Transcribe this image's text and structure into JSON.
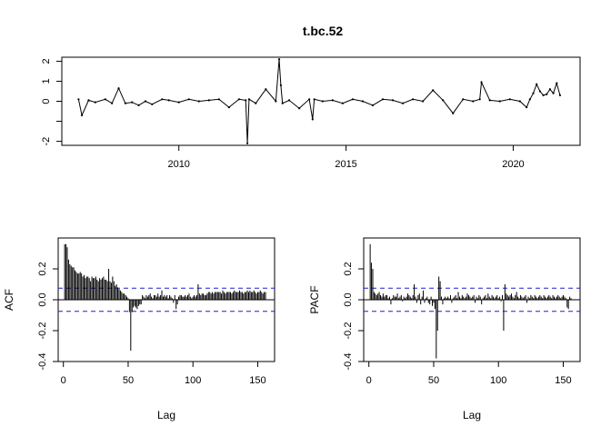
{
  "title": "t.bc.52",
  "chart_data": [
    {
      "type": "line",
      "name": "time-series",
      "xlabel": "",
      "ylabel": "",
      "xlim": [
        2006.5,
        2022.0
      ],
      "ylim": [
        -2.2,
        2.2
      ],
      "xticks": [
        2010,
        2015,
        2020
      ],
      "yticks": [
        -2,
        -1,
        0,
        1,
        2
      ],
      "ytick_labels": [
        "-2",
        "",
        "0",
        "1",
        "2"
      ],
      "x": [
        2007.0,
        2007.1,
        2007.3,
        2007.5,
        2007.8,
        2008.0,
        2008.2,
        2008.4,
        2008.6,
        2008.8,
        2009.0,
        2009.2,
        2009.5,
        2009.7,
        2010.0,
        2010.3,
        2010.6,
        2010.9,
        2011.2,
        2011.5,
        2011.8,
        2012.0,
        2012.05,
        2012.1,
        2012.3,
        2012.6,
        2012.9,
        2013.0,
        2013.05,
        2013.1,
        2013.3,
        2013.6,
        2013.9,
        2014.0,
        2014.05,
        2014.3,
        2014.6,
        2014.9,
        2015.2,
        2015.5,
        2015.8,
        2016.1,
        2016.4,
        2016.7,
        2017.0,
        2017.3,
        2017.6,
        2017.9,
        2018.2,
        2018.5,
        2018.8,
        2019.0,
        2019.05,
        2019.3,
        2019.6,
        2019.9,
        2020.2,
        2020.4,
        2020.5,
        2020.6,
        2020.7,
        2020.8,
        2020.9,
        2021.0,
        2021.1,
        2021.2,
        2021.3,
        2021.4
      ],
      "y": [
        0.1,
        -0.7,
        0.05,
        -0.05,
        0.1,
        -0.1,
        0.65,
        -0.1,
        -0.05,
        -0.2,
        0.0,
        -0.15,
        0.1,
        0.05,
        -0.05,
        0.1,
        0.0,
        0.05,
        0.1,
        -0.3,
        0.1,
        0.05,
        -2.1,
        0.1,
        -0.1,
        0.6,
        0.0,
        2.1,
        0.8,
        -0.1,
        0.05,
        -0.35,
        0.1,
        -0.9,
        0.1,
        0.0,
        0.05,
        -0.1,
        0.1,
        0.0,
        -0.2,
        0.1,
        0.05,
        -0.1,
        0.1,
        0.0,
        0.55,
        0.05,
        -0.6,
        0.1,
        0.0,
        0.1,
        0.95,
        0.05,
        0.0,
        0.1,
        0.0,
        -0.3,
        0.1,
        0.4,
        0.85,
        0.5,
        0.3,
        0.35,
        0.6,
        0.4,
        0.9,
        0.3
      ]
    },
    {
      "type": "bar",
      "name": "acf",
      "xlabel": "Lag",
      "ylabel": "ACF",
      "xlim": [
        -4,
        163
      ],
      "ylim": [
        -0.4,
        0.4
      ],
      "xticks": [
        0,
        50,
        100,
        150
      ],
      "yticks": [
        -0.4,
        -0.2,
        0.0,
        0.2
      ],
      "ytick_labels": [
        "-0.4",
        "-0.2",
        "0.0",
        "0.2"
      ],
      "confidence_band": 0.075,
      "lags": [
        1,
        2,
        3,
        4,
        5,
        6,
        7,
        8,
        9,
        10,
        11,
        12,
        13,
        14,
        15,
        16,
        17,
        18,
        19,
        20,
        21,
        22,
        23,
        24,
        25,
        26,
        27,
        28,
        29,
        30,
        31,
        32,
        33,
        34,
        35,
        36,
        37,
        38,
        39,
        40,
        41,
        42,
        43,
        44,
        45,
        46,
        47,
        48,
        49,
        50,
        51,
        52,
        53,
        54,
        55,
        56,
        57,
        58,
        59,
        60,
        61,
        62,
        63,
        64,
        65,
        66,
        67,
        68,
        69,
        70,
        71,
        72,
        73,
        74,
        75,
        76,
        77,
        78,
        79,
        80,
        81,
        82,
        83,
        84,
        85,
        86,
        87,
        88,
        89,
        90,
        91,
        92,
        93,
        94,
        95,
        96,
        97,
        98,
        99,
        100,
        101,
        102,
        103,
        104,
        105,
        106,
        107,
        108,
        109,
        110,
        111,
        112,
        113,
        114,
        115,
        116,
        117,
        118,
        119,
        120,
        121,
        122,
        123,
        124,
        125,
        126,
        127,
        128,
        129,
        130,
        131,
        132,
        133,
        134,
        135,
        136,
        137,
        138,
        139,
        140,
        141,
        142,
        143,
        144,
        145,
        146,
        147,
        148,
        149,
        150,
        151,
        152,
        153,
        154,
        155,
        156
      ],
      "values": [
        0.36,
        0.36,
        0.34,
        0.26,
        0.23,
        0.22,
        0.21,
        0.21,
        0.19,
        0.18,
        0.17,
        0.17,
        0.18,
        0.17,
        0.15,
        0.16,
        0.14,
        0.15,
        0.15,
        0.14,
        0.12,
        0.15,
        0.14,
        0.14,
        0.15,
        0.13,
        0.12,
        0.14,
        0.13,
        0.14,
        0.15,
        0.13,
        0.13,
        0.12,
        0.2,
        0.12,
        0.11,
        0.15,
        0.12,
        0.09,
        0.1,
        0.08,
        0.07,
        0.06,
        0.05,
        0.04,
        0.04,
        0.03,
        0.02,
        0.01,
        -0.08,
        -0.33,
        -0.08,
        -0.05,
        -0.04,
        -0.05,
        -0.06,
        -0.04,
        -0.03,
        -0.03,
        0.03,
        0.02,
        0.01,
        0.03,
        0.02,
        0.03,
        0.04,
        0.02,
        0.01,
        0.03,
        0.03,
        0.02,
        0.04,
        0.02,
        0.03,
        0.06,
        0.02,
        0.03,
        0.02,
        0.03,
        0.01,
        0.03,
        0.02,
        0.01,
        -0.02,
        0.03,
        -0.06,
        -0.03,
        0.02,
        0.03,
        0.03,
        0.02,
        0.02,
        0.03,
        0.02,
        0.03,
        0.04,
        0.02,
        0.01,
        0.02,
        0.03,
        0.02,
        0.03,
        0.1,
        0.04,
        0.03,
        0.04,
        0.04,
        0.03,
        0.03,
        0.04,
        0.05,
        0.05,
        0.04,
        0.05,
        0.04,
        0.05,
        0.05,
        0.05,
        0.05,
        0.05,
        0.04,
        0.06,
        0.05,
        0.04,
        0.05,
        0.05,
        0.05,
        0.05,
        0.04,
        0.05,
        0.06,
        0.05,
        0.05,
        0.05,
        0.06,
        0.05,
        0.05,
        0.04,
        0.05,
        0.05,
        0.06,
        0.05,
        0.06,
        0.05,
        0.05,
        0.06,
        0.05,
        0.04,
        0.05,
        0.05,
        0.06,
        0.05,
        0.04,
        0.05,
        0.05
      ]
    },
    {
      "type": "bar",
      "name": "pacf",
      "xlabel": "Lag",
      "ylabel": "PACF",
      "xlim": [
        -4,
        163
      ],
      "ylim": [
        -0.4,
        0.4
      ],
      "xticks": [
        0,
        50,
        100,
        150
      ],
      "yticks": [
        -0.4,
        -0.2,
        0.0,
        0.2
      ],
      "ytick_labels": [
        "-0.4",
        "-0.2",
        "0.0",
        "0.2"
      ],
      "confidence_band": 0.075,
      "lags": [
        1,
        2,
        3,
        4,
        5,
        6,
        7,
        8,
        9,
        10,
        11,
        12,
        13,
        14,
        15,
        16,
        17,
        18,
        19,
        20,
        21,
        22,
        23,
        24,
        25,
        26,
        27,
        28,
        29,
        30,
        31,
        32,
        33,
        34,
        35,
        36,
        37,
        38,
        39,
        40,
        41,
        42,
        43,
        44,
        45,
        46,
        47,
        48,
        49,
        50,
        51,
        52,
        53,
        54,
        55,
        56,
        57,
        58,
        59,
        60,
        61,
        62,
        63,
        64,
        65,
        66,
        67,
        68,
        69,
        70,
        71,
        72,
        73,
        74,
        75,
        76,
        77,
        78,
        79,
        80,
        81,
        82,
        83,
        84,
        85,
        86,
        87,
        88,
        89,
        90,
        91,
        92,
        93,
        94,
        95,
        96,
        97,
        98,
        99,
        100,
        101,
        102,
        103,
        104,
        105,
        106,
        107,
        108,
        109,
        110,
        111,
        112,
        113,
        114,
        115,
        116,
        117,
        118,
        119,
        120,
        121,
        122,
        123,
        124,
        125,
        126,
        127,
        128,
        129,
        130,
        131,
        132,
        133,
        134,
        135,
        136,
        137,
        138,
        139,
        140,
        141,
        142,
        143,
        144,
        145,
        146,
        147,
        148,
        149,
        150,
        151,
        152,
        153,
        154,
        155,
        156
      ],
      "values": [
        0.36,
        0.24,
        0.2,
        0.05,
        0.04,
        0.03,
        0.04,
        0.05,
        0.03,
        0.02,
        0.04,
        0.02,
        0.03,
        0.03,
        0.01,
        0.02,
        -0.03,
        0.01,
        0.03,
        0.02,
        0.02,
        0.04,
        0.01,
        0.02,
        0.03,
        -0.01,
        0.02,
        0.01,
        0.02,
        0.04,
        0.03,
        0.02,
        0.01,
        0.03,
        0.1,
        0.02,
        -0.02,
        0.03,
        0.04,
        -0.03,
        0.02,
        0.06,
        -0.02,
        0.01,
        0.02,
        -0.02,
        -0.03,
        0.02,
        -0.04,
        -0.02,
        -0.06,
        -0.38,
        -0.2,
        0.15,
        0.12,
        0.02,
        -0.03,
        0.01,
        0.02,
        0.01,
        0.02,
        0.01,
        0.03,
        -0.02,
        0.01,
        0.02,
        0.03,
        0.01,
        0.05,
        0.02,
        0.01,
        0.03,
        0.02,
        0.01,
        0.02,
        0.04,
        0.03,
        0.02,
        0.01,
        0.02,
        0.03,
        -0.02,
        0.02,
        0.01,
        0.03,
        0.02,
        -0.03,
        0.01,
        0.02,
        0.03,
        0.01,
        0.04,
        0.02,
        0.01,
        0.03,
        0.02,
        0.01,
        0.02,
        0.03,
        0.01,
        0.02,
        -0.01,
        0.03,
        -0.2,
        0.1,
        0.04,
        0.03,
        0.02,
        0.03,
        0.04,
        0.02,
        0.01,
        0.03,
        0.05,
        0.02,
        0.01,
        0.03,
        0.02,
        0.01,
        0.02,
        0.03,
        -0.02,
        0.02,
        0.01,
        0.03,
        0.02,
        0.01,
        0.03,
        0.02,
        0.01,
        0.02,
        0.03,
        0.02,
        0.01,
        0.03,
        0.02,
        0.01,
        0.02,
        0.03,
        0.02,
        0.01,
        0.03,
        0.02,
        0.01,
        0.02,
        0.03,
        0.02,
        0.01,
        0.02,
        0.03,
        0.02,
        0.01,
        -0.05,
        -0.06,
        0.02,
        0.01
      ]
    }
  ]
}
